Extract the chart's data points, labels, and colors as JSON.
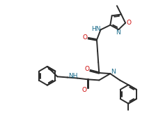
{
  "bg_color": "#ffffff",
  "line_color": "#2b2b2b",
  "heteroatom_color": "#1a6b8a",
  "oxygen_color": "#cc0000",
  "line_width": 1.4,
  "figsize": [
    2.24,
    1.77
  ],
  "dpi": 100,
  "xlim": [
    0,
    10
  ],
  "ylim": [
    0,
    7.9
  ]
}
